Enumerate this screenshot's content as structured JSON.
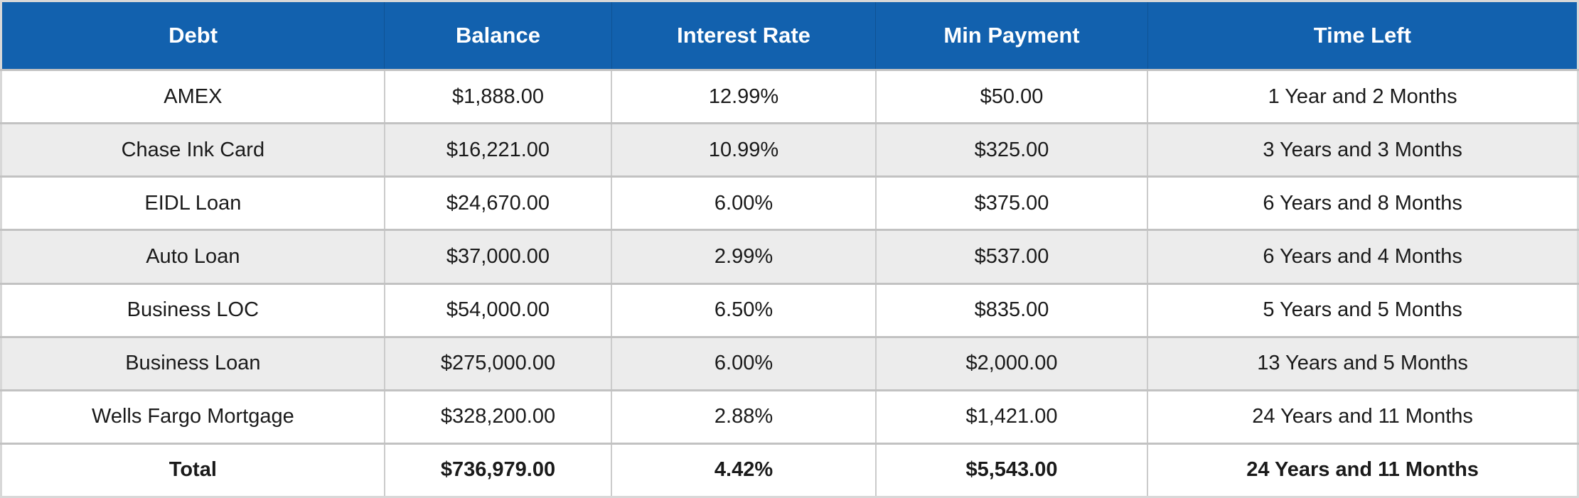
{
  "chart_data": {
    "type": "table",
    "title": "",
    "columns": [
      "Debt",
      "Balance",
      "Interest Rate",
      "Min Payment",
      "Time Left"
    ],
    "rows": [
      [
        "AMEX",
        "$1,888.00",
        "12.99%",
        "$50.00",
        "1 Year and 2 Months"
      ],
      [
        "Chase Ink Card",
        "$16,221.00",
        "10.99%",
        "$325.00",
        "3 Years and 3 Months"
      ],
      [
        "EIDL Loan",
        "$24,670.00",
        "6.00%",
        "$375.00",
        "6 Years and 8 Months"
      ],
      [
        "Auto Loan",
        "$37,000.00",
        "2.99%",
        "$537.00",
        "6 Years and 4 Months"
      ],
      [
        "Business LOC",
        "$54,000.00",
        "6.50%",
        "$835.00",
        "5 Years and 5 Months"
      ],
      [
        "Business Loan",
        "$275,000.00",
        "6.00%",
        "$2,000.00",
        "13 Years and 5 Months"
      ],
      [
        "Wells Fargo Mortgage",
        "$328,200.00",
        "2.88%",
        "$1,421.00",
        "24 Years and 11 Months"
      ]
    ],
    "total_row": [
      "Total",
      "$736,979.00",
      "4.42%",
      "$5,543.00",
      "24 Years and 11 Months"
    ],
    "layout": {
      "zebra_striping": true,
      "first_data_row_background": "white",
      "total_row_bold": true,
      "all_cells_centered": true
    }
  },
  "colors": {
    "header_bg": "#1261AE",
    "header_text": "#FFFFFF",
    "row_bg": "#FFFFFF",
    "row_alt_bg": "#ECECEC",
    "border_horizontal": "#C2C2C2",
    "border_vertical": "#CBCBCB",
    "text": "#1A1A1A"
  }
}
